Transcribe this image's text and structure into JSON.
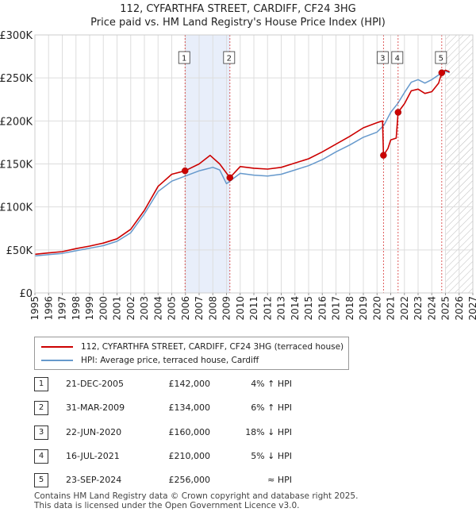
{
  "title_line1": "112, CYFARTHFA STREET, CARDIFF, CF24 3HG",
  "title_line2": "Price paid vs. HM Land Registry's House Price Index (HPI)",
  "colors": {
    "price": "#cc0000",
    "hpi": "#6699cc",
    "highlight": "#e8eefa",
    "hatch": "#bbbbbb"
  },
  "legend": {
    "price_label": "112, CYFARTHFA STREET, CARDIFF, CF24 3HG (terraced house)",
    "hpi_label": "HPI: Average price, terraced house, Cardiff"
  },
  "chart_data": {
    "type": "line",
    "xlim": [
      1995,
      2027
    ],
    "ylim": [
      0,
      300000
    ],
    "x_ticks": [
      "1995",
      "1996",
      "1997",
      "1998",
      "1999",
      "2000",
      "2001",
      "2002",
      "2003",
      "2004",
      "2005",
      "2006",
      "2007",
      "2008",
      "2009",
      "2010",
      "2011",
      "2012",
      "2013",
      "2014",
      "2015",
      "2016",
      "2017",
      "2018",
      "2019",
      "2020",
      "2021",
      "2022",
      "2023",
      "2024",
      "2025",
      "2026",
      "2027"
    ],
    "y_ticks": [
      {
        "value": 0,
        "label": "£0"
      },
      {
        "value": 50000,
        "label": "£50K"
      },
      {
        "value": 100000,
        "label": "£100K"
      },
      {
        "value": 150000,
        "label": "£150K"
      },
      {
        "value": 200000,
        "label": "£200K"
      },
      {
        "value": 250000,
        "label": "£250K"
      },
      {
        "value": 300000,
        "label": "£300K"
      }
    ],
    "highlight_ranges": [
      [
        2005.97,
        2009.25
      ]
    ],
    "forecast_start": 2025.0,
    "series": [
      {
        "name": "HPI: Average price, terraced house, Cardiff",
        "points": [
          [
            1995,
            43000
          ],
          [
            1996,
            44500
          ],
          [
            1997,
            46000
          ],
          [
            1998,
            49000
          ],
          [
            1999,
            52000
          ],
          [
            2000,
            55000
          ],
          [
            2001,
            60000
          ],
          [
            2002,
            70000
          ],
          [
            2003,
            92000
          ],
          [
            2004,
            118000
          ],
          [
            2005,
            130000
          ],
          [
            2006,
            136000
          ],
          [
            2007,
            142000
          ],
          [
            2008,
            146000
          ],
          [
            2008.5,
            143000
          ],
          [
            2009,
            127000
          ],
          [
            2009.5,
            133000
          ],
          [
            2010,
            139000
          ],
          [
            2011,
            137000
          ],
          [
            2012,
            136000
          ],
          [
            2013,
            138000
          ],
          [
            2014,
            143000
          ],
          [
            2015,
            148000
          ],
          [
            2016,
            155000
          ],
          [
            2017,
            164000
          ],
          [
            2018,
            172000
          ],
          [
            2019,
            181000
          ],
          [
            2020,
            187000
          ],
          [
            2020.5,
            195000
          ],
          [
            2021,
            210000
          ],
          [
            2021.5,
            220000
          ],
          [
            2022,
            233000
          ],
          [
            2022.5,
            245000
          ],
          [
            2023,
            248000
          ],
          [
            2023.5,
            244000
          ],
          [
            2024,
            248000
          ],
          [
            2024.73,
            256000
          ],
          [
            2025,
            258000
          ],
          [
            2025.3,
            256000
          ]
        ]
      },
      {
        "name": "112, CYFARTHFA STREET, CARDIFF, CF24 3HG (terraced house)",
        "points": [
          [
            1995,
            45000
          ],
          [
            1996,
            46500
          ],
          [
            1997,
            48000
          ],
          [
            1998,
            51500
          ],
          [
            1999,
            54500
          ],
          [
            2000,
            58000
          ],
          [
            2001,
            63000
          ],
          [
            2002,
            74000
          ],
          [
            2003,
            96000
          ],
          [
            2004,
            124000
          ],
          [
            2005,
            138000
          ],
          [
            2005.97,
            142000
          ],
          [
            2007,
            150000
          ],
          [
            2007.8,
            160000
          ],
          [
            2008.5,
            150000
          ],
          [
            2009.25,
            134000
          ],
          [
            2010,
            147000
          ],
          [
            2011,
            145000
          ],
          [
            2012,
            144000
          ],
          [
            2013,
            146000
          ],
          [
            2014,
            151000
          ],
          [
            2015,
            156000
          ],
          [
            2016,
            164000
          ],
          [
            2017,
            173000
          ],
          [
            2018,
            182000
          ],
          [
            2019,
            192000
          ],
          [
            2020,
            198000
          ],
          [
            2020.4,
            200000
          ],
          [
            2020.47,
            160000
          ],
          [
            2020.8,
            168000
          ],
          [
            2021,
            178000
          ],
          [
            2021.4,
            180000
          ],
          [
            2021.54,
            210000
          ],
          [
            2022,
            220000
          ],
          [
            2022.5,
            235000
          ],
          [
            2023,
            237000
          ],
          [
            2023.5,
            232000
          ],
          [
            2024,
            234000
          ],
          [
            2024.5,
            244000
          ],
          [
            2024.73,
            256000
          ],
          [
            2025,
            259000
          ],
          [
            2025.3,
            257000
          ]
        ]
      }
    ],
    "sales": [
      {
        "marker": "1",
        "x": 2005.97,
        "y": 142000
      },
      {
        "marker": "2",
        "x": 2009.25,
        "y": 134000
      },
      {
        "marker": "3",
        "x": 2020.47,
        "y": 160000
      },
      {
        "marker": "4",
        "x": 2021.54,
        "y": 210000
      },
      {
        "marker": "5",
        "x": 2024.73,
        "y": 256000
      }
    ]
  },
  "transactions": [
    {
      "num": "1",
      "date": "21-DEC-2005",
      "price": "£142,000",
      "relation": "4% ↑ HPI"
    },
    {
      "num": "2",
      "date": "31-MAR-2009",
      "price": "£134,000",
      "relation": "6% ↑ HPI"
    },
    {
      "num": "3",
      "date": "22-JUN-2020",
      "price": "£160,000",
      "relation": "18% ↓ HPI"
    },
    {
      "num": "4",
      "date": "16-JUL-2021",
      "price": "£210,000",
      "relation": "5% ↓ HPI"
    },
    {
      "num": "5",
      "date": "23-SEP-2024",
      "price": "£256,000",
      "relation": "≈ HPI"
    }
  ],
  "footer_line1": "Contains HM Land Registry data © Crown copyright and database right 2025.",
  "footer_line2": "This data is licensed under the Open Government Licence v3.0."
}
